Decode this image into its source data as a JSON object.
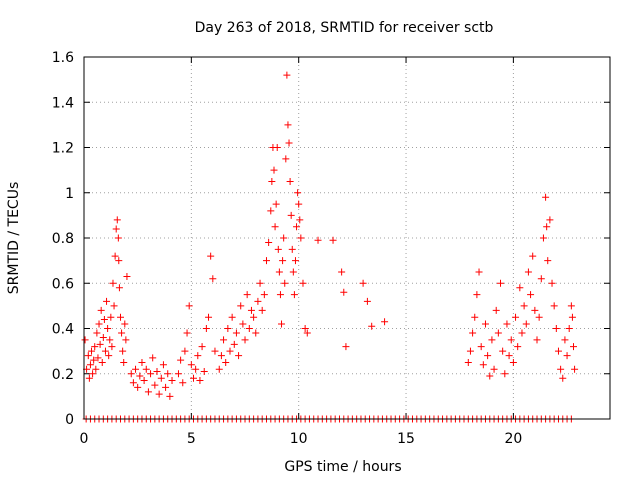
{
  "chart_data": {
    "type": "scatter",
    "title": "Day 263 of 2018, SRMTID for receiver sctb",
    "xlabel": "GPS time / hours",
    "ylabel": "SRMTID / TECUs",
    "xlim": [
      0,
      24.5
    ],
    "ylim": [
      0,
      1.6
    ],
    "x_ticks": [
      0,
      5,
      10,
      15,
      20
    ],
    "x_tick_labels": [
      "0",
      "5",
      "10",
      "15",
      "20"
    ],
    "y_ticks": [
      0,
      0.2,
      0.4,
      0.6,
      0.8,
      1.0,
      1.2,
      1.4,
      1.6
    ],
    "y_tick_labels": [
      "0",
      "0.2",
      "0.4",
      "0.6",
      "0.8",
      "1",
      "1.2",
      "1.4",
      "1.6"
    ],
    "grid": true,
    "marker": "plus",
    "color": "#ff0000",
    "series": [
      {
        "name": "SRMTID",
        "points": [
          [
            0.05,
            0.35
          ],
          [
            0.12,
            0.22
          ],
          [
            0.2,
            0.28
          ],
          [
            0.25,
            0.18
          ],
          [
            0.3,
            0.24
          ],
          [
            0.35,
            0.3
          ],
          [
            0.4,
            0.2
          ],
          [
            0.45,
            0.26
          ],
          [
            0.5,
            0.32
          ],
          [
            0.55,
            0.22
          ],
          [
            0.6,
            0.38
          ],
          [
            0.65,
            0.27
          ],
          [
            0.7,
            0.42
          ],
          [
            0.75,
            0.33
          ],
          [
            0.8,
            0.48
          ],
          [
            0.85,
            0.25
          ],
          [
            0.9,
            0.36
          ],
          [
            0.95,
            0.44
          ],
          [
            1.0,
            0.3
          ],
          [
            1.05,
            0.52
          ],
          [
            1.1,
            0.4
          ],
          [
            1.15,
            0.28
          ],
          [
            1.2,
            0.35
          ],
          [
            1.25,
            0.45
          ],
          [
            1.3,
            0.32
          ],
          [
            1.35,
            0.6
          ],
          [
            1.4,
            0.5
          ],
          [
            1.45,
            0.72
          ],
          [
            1.5,
            0.84
          ],
          [
            1.55,
            0.88
          ],
          [
            1.6,
            0.8
          ],
          [
            1.62,
            0.7
          ],
          [
            1.65,
            0.58
          ],
          [
            1.7,
            0.45
          ],
          [
            1.75,
            0.38
          ],
          [
            1.8,
            0.3
          ],
          [
            1.85,
            0.25
          ],
          [
            1.9,
            0.42
          ],
          [
            1.95,
            0.35
          ],
          [
            2.0,
            0.63
          ],
          [
            2.2,
            0.2
          ],
          [
            2.3,
            0.16
          ],
          [
            2.4,
            0.22
          ],
          [
            2.5,
            0.14
          ],
          [
            2.6,
            0.19
          ],
          [
            2.7,
            0.25
          ],
          [
            2.8,
            0.17
          ],
          [
            2.9,
            0.22
          ],
          [
            3.0,
            0.12
          ],
          [
            3.1,
            0.2
          ],
          [
            3.2,
            0.27
          ],
          [
            3.3,
            0.15
          ],
          [
            3.4,
            0.21
          ],
          [
            3.5,
            0.11
          ],
          [
            3.6,
            0.18
          ],
          [
            3.7,
            0.24
          ],
          [
            3.8,
            0.14
          ],
          [
            3.9,
            0.2
          ],
          [
            4.0,
            0.1
          ],
          [
            4.1,
            0.17
          ],
          [
            4.4,
            0.2
          ],
          [
            4.5,
            0.26
          ],
          [
            4.6,
            0.16
          ],
          [
            4.7,
            0.3
          ],
          [
            4.8,
            0.38
          ],
          [
            4.9,
            0.5
          ],
          [
            5.0,
            0.24
          ],
          [
            5.1,
            0.18
          ],
          [
            5.2,
            0.22
          ],
          [
            5.3,
            0.28
          ],
          [
            5.4,
            0.17
          ],
          [
            5.5,
            0.32
          ],
          [
            5.6,
            0.21
          ],
          [
            5.7,
            0.4
          ],
          [
            5.8,
            0.45
          ],
          [
            5.9,
            0.72
          ],
          [
            6.0,
            0.62
          ],
          [
            6.1,
            0.3
          ],
          [
            6.3,
            0.22
          ],
          [
            6.4,
            0.28
          ],
          [
            6.5,
            0.35
          ],
          [
            6.6,
            0.25
          ],
          [
            6.7,
            0.4
          ],
          [
            6.8,
            0.3
          ],
          [
            6.9,
            0.45
          ],
          [
            7.0,
            0.33
          ],
          [
            7.1,
            0.38
          ],
          [
            7.2,
            0.28
          ],
          [
            7.3,
            0.5
          ],
          [
            7.4,
            0.42
          ],
          [
            7.5,
            0.35
          ],
          [
            7.6,
            0.55
          ],
          [
            7.7,
            0.4
          ],
          [
            7.8,
            0.48
          ],
          [
            7.9,
            0.45
          ],
          [
            8.0,
            0.38
          ],
          [
            8.1,
            0.52
          ],
          [
            8.2,
            0.6
          ],
          [
            8.3,
            0.48
          ],
          [
            8.4,
            0.55
          ],
          [
            8.5,
            0.7
          ],
          [
            8.6,
            0.78
          ],
          [
            8.7,
            0.92
          ],
          [
            8.75,
            1.05
          ],
          [
            8.8,
            1.2
          ],
          [
            8.85,
            1.1
          ],
          [
            8.9,
            0.85
          ],
          [
            8.95,
            0.95
          ],
          [
            9.0,
            1.2
          ],
          [
            9.05,
            0.75
          ],
          [
            9.1,
            0.65
          ],
          [
            9.15,
            0.55
          ],
          [
            9.2,
            0.42
          ],
          [
            9.25,
            0.7
          ],
          [
            9.3,
            0.8
          ],
          [
            9.35,
            0.6
          ],
          [
            9.4,
            1.15
          ],
          [
            9.45,
            1.52
          ],
          [
            9.5,
            1.3
          ],
          [
            9.55,
            1.22
          ],
          [
            9.6,
            1.05
          ],
          [
            9.65,
            0.9
          ],
          [
            9.7,
            0.75
          ],
          [
            9.75,
            0.65
          ],
          [
            9.8,
            0.55
          ],
          [
            9.85,
            0.7
          ],
          [
            9.9,
            0.85
          ],
          [
            9.95,
            1.0
          ],
          [
            10.0,
            0.95
          ],
          [
            10.05,
            0.88
          ],
          [
            10.1,
            0.8
          ],
          [
            10.2,
            0.6
          ],
          [
            10.3,
            0.4
          ],
          [
            10.4,
            0.38
          ],
          [
            10.9,
            0.79
          ],
          [
            11.6,
            0.79
          ],
          [
            12.0,
            0.65
          ],
          [
            12.1,
            0.56
          ],
          [
            12.2,
            0.32
          ],
          [
            13.0,
            0.6
          ],
          [
            13.2,
            0.52
          ],
          [
            13.4,
            0.41
          ],
          [
            14.0,
            0.43
          ],
          [
            17.9,
            0.25
          ],
          [
            18.0,
            0.3
          ],
          [
            18.1,
            0.38
          ],
          [
            18.2,
            0.45
          ],
          [
            18.3,
            0.55
          ],
          [
            18.4,
            0.65
          ],
          [
            18.5,
            0.32
          ],
          [
            18.6,
            0.24
          ],
          [
            18.7,
            0.42
          ],
          [
            18.8,
            0.28
          ],
          [
            18.9,
            0.19
          ],
          [
            19.0,
            0.35
          ],
          [
            19.1,
            0.22
          ],
          [
            19.2,
            0.48
          ],
          [
            19.3,
            0.38
          ],
          [
            19.4,
            0.6
          ],
          [
            19.5,
            0.3
          ],
          [
            19.6,
            0.2
          ],
          [
            19.7,
            0.42
          ],
          [
            19.8,
            0.28
          ],
          [
            19.9,
            0.35
          ],
          [
            20.0,
            0.25
          ],
          [
            20.1,
            0.45
          ],
          [
            20.2,
            0.32
          ],
          [
            20.3,
            0.58
          ],
          [
            20.4,
            0.38
          ],
          [
            20.5,
            0.5
          ],
          [
            20.6,
            0.42
          ],
          [
            20.7,
            0.65
          ],
          [
            20.8,
            0.55
          ],
          [
            20.9,
            0.72
          ],
          [
            21.0,
            0.48
          ],
          [
            21.1,
            0.35
          ],
          [
            21.2,
            0.45
          ],
          [
            21.3,
            0.62
          ],
          [
            21.4,
            0.8
          ],
          [
            21.5,
            0.98
          ],
          [
            21.55,
            0.85
          ],
          [
            21.6,
            0.7
          ],
          [
            21.7,
            0.88
          ],
          [
            21.8,
            0.6
          ],
          [
            21.9,
            0.5
          ],
          [
            22.0,
            0.4
          ],
          [
            22.1,
            0.3
          ],
          [
            22.2,
            0.22
          ],
          [
            22.3,
            0.18
          ],
          [
            22.4,
            0.35
          ],
          [
            22.5,
            0.28
          ],
          [
            22.6,
            0.4
          ],
          [
            22.7,
            0.5
          ],
          [
            22.75,
            0.45
          ],
          [
            22.8,
            0.32
          ],
          [
            22.85,
            0.22
          ]
        ]
      }
    ],
    "zero_markers": [
      [
        0.1,
        0
      ],
      [
        0.3,
        0
      ],
      [
        0.5,
        0
      ],
      [
        0.7,
        0
      ],
      [
        0.9,
        0
      ],
      [
        1.1,
        0
      ],
      [
        1.3,
        0
      ],
      [
        1.5,
        0
      ],
      [
        1.7,
        0
      ],
      [
        1.9,
        0
      ],
      [
        2.1,
        0
      ],
      [
        2.3,
        0
      ],
      [
        2.5,
        0
      ],
      [
        2.7,
        0
      ],
      [
        2.9,
        0
      ],
      [
        3.1,
        0
      ],
      [
        3.3,
        0
      ],
      [
        3.5,
        0
      ],
      [
        3.7,
        0
      ],
      [
        3.9,
        0
      ],
      [
        4.1,
        0
      ],
      [
        4.3,
        0
      ],
      [
        4.5,
        0
      ],
      [
        4.7,
        0
      ],
      [
        4.9,
        0
      ],
      [
        5.1,
        0
      ],
      [
        5.3,
        0
      ],
      [
        5.5,
        0
      ],
      [
        5.7,
        0
      ],
      [
        5.9,
        0
      ],
      [
        6.1,
        0
      ],
      [
        6.3,
        0
      ],
      [
        6.5,
        0
      ],
      [
        6.7,
        0
      ],
      [
        6.9,
        0
      ],
      [
        7.1,
        0
      ],
      [
        7.3,
        0
      ],
      [
        7.5,
        0
      ],
      [
        7.7,
        0
      ],
      [
        7.9,
        0
      ],
      [
        8.1,
        0
      ],
      [
        8.3,
        0
      ],
      [
        8.5,
        0
      ],
      [
        8.7,
        0
      ],
      [
        8.9,
        0
      ],
      [
        9.1,
        0
      ],
      [
        9.3,
        0
      ],
      [
        9.5,
        0
      ],
      [
        9.7,
        0
      ],
      [
        9.9,
        0
      ],
      [
        10.1,
        0
      ],
      [
        10.3,
        0
      ],
      [
        10.5,
        0
      ],
      [
        10.7,
        0
      ],
      [
        10.9,
        0
      ],
      [
        11.1,
        0
      ],
      [
        11.3,
        0
      ],
      [
        11.5,
        0
      ],
      [
        11.7,
        0
      ],
      [
        11.9,
        0
      ],
      [
        12.1,
        0
      ],
      [
        12.3,
        0
      ],
      [
        12.5,
        0
      ],
      [
        12.7,
        0
      ],
      [
        12.9,
        0
      ],
      [
        13.1,
        0
      ],
      [
        13.3,
        0
      ],
      [
        13.5,
        0
      ],
      [
        13.7,
        0
      ],
      [
        13.9,
        0
      ],
      [
        14.1,
        0
      ],
      [
        14.3,
        0
      ],
      [
        14.5,
        0
      ],
      [
        14.7,
        0
      ],
      [
        14.9,
        0
      ],
      [
        15.1,
        0
      ],
      [
        15.3,
        0
      ],
      [
        15.5,
        0
      ],
      [
        15.7,
        0
      ],
      [
        15.9,
        0
      ],
      [
        16.1,
        0
      ],
      [
        16.3,
        0
      ],
      [
        16.5,
        0
      ],
      [
        16.7,
        0
      ],
      [
        16.9,
        0
      ],
      [
        17.1,
        0
      ],
      [
        17.3,
        0
      ],
      [
        17.5,
        0
      ],
      [
        17.7,
        0
      ],
      [
        17.9,
        0
      ],
      [
        18.1,
        0
      ],
      [
        18.3,
        0
      ],
      [
        18.5,
        0
      ],
      [
        18.7,
        0
      ],
      [
        18.9,
        0
      ],
      [
        19.1,
        0
      ],
      [
        19.3,
        0
      ],
      [
        19.5,
        0
      ],
      [
        19.7,
        0
      ],
      [
        19.9,
        0
      ],
      [
        20.1,
        0
      ],
      [
        20.3,
        0
      ],
      [
        20.5,
        0
      ],
      [
        20.7,
        0
      ],
      [
        20.9,
        0
      ],
      [
        21.1,
        0
      ],
      [
        21.3,
        0
      ],
      [
        21.5,
        0
      ],
      [
        21.7,
        0
      ],
      [
        21.9,
        0
      ],
      [
        22.1,
        0
      ],
      [
        22.3,
        0
      ],
      [
        22.5,
        0
      ],
      [
        22.7,
        0
      ]
    ]
  }
}
